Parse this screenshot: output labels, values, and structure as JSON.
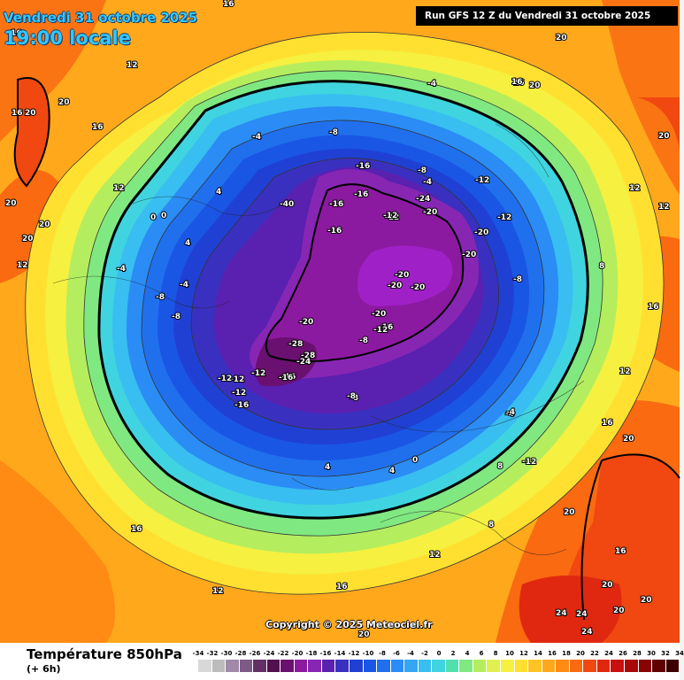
{
  "header": {
    "date": "Vendredi 31 octobre 2025",
    "time": "19:00 locale",
    "run": "Run GFS 12 Z du Vendredi 31 octobre 2025"
  },
  "footer": {
    "copyright": "Copyright © 2025 Meteociel.fr",
    "parameter": "Température 850hPa",
    "step": "(+ 6h)"
  },
  "legend": {
    "labels": [
      "-34",
      "-32",
      "-30",
      "-28",
      "-26",
      "-24",
      "-22",
      "-20",
      "-18",
      "-16",
      "-14",
      "-12",
      "-10",
      "-8",
      "-6",
      "-4",
      "-2",
      "0",
      "2",
      "4",
      "6",
      "8",
      "10",
      "12",
      "14",
      "16",
      "18",
      "20",
      "22",
      "24",
      "26",
      "28",
      "30",
      "32",
      "34"
    ],
    "colors": [
      "#d8d8d8",
      "#bcbcbc",
      "#a08aa8",
      "#7e5a86",
      "#623064",
      "#52104e",
      "#6a1070",
      "#8c1aa0",
      "#8826b4",
      "#5a20b0",
      "#3a30c0",
      "#2040d4",
      "#1a56e4",
      "#2070ee",
      "#2a8cf4",
      "#34a6f4",
      "#38bef0",
      "#40d4e0",
      "#50e0b0",
      "#80e880",
      "#b4ee5e",
      "#e0f050",
      "#f6f040",
      "#ffe030",
      "#ffc424",
      "#ffa81c",
      "#ff8a14",
      "#fa6a10",
      "#f04810",
      "#e02810",
      "#c81010",
      "#a80808",
      "#880404",
      "#600202",
      "#3c0000"
    ]
  },
  "map_labels": [
    "16",
    "20",
    "16",
    "20",
    "20",
    "12",
    "16",
    "16",
    "20",
    "20",
    "16",
    "12",
    "20",
    "20",
    "12",
    "4",
    "-4",
    "-4",
    "-4",
    "0",
    "0",
    "4",
    "-8",
    "-8",
    "-12",
    "-16",
    "-16",
    "-16",
    "-24",
    "-16",
    "-20",
    "-12",
    "-12",
    "-20",
    "-16",
    "-8",
    "-12",
    "-12",
    "-12",
    "8",
    "12",
    "16",
    "16",
    "20",
    "20",
    "20",
    "-16",
    "-20",
    "-20",
    "-20",
    "-20",
    "-16",
    "-12",
    "-8",
    "-28",
    "-28",
    "-24",
    "-16",
    "-12",
    "-12",
    "-8",
    "-4",
    "0",
    "4",
    "8",
    "12",
    "16",
    "20",
    "24",
    "16",
    "20",
    "24",
    "20",
    "16",
    "12",
    "-8",
    "-8",
    "-4",
    "4",
    "8",
    "16",
    "-20",
    "-20",
    "-40",
    "-8",
    "-4",
    "12",
    "20",
    "24",
    "-4",
    "-12",
    "12"
  ]
}
